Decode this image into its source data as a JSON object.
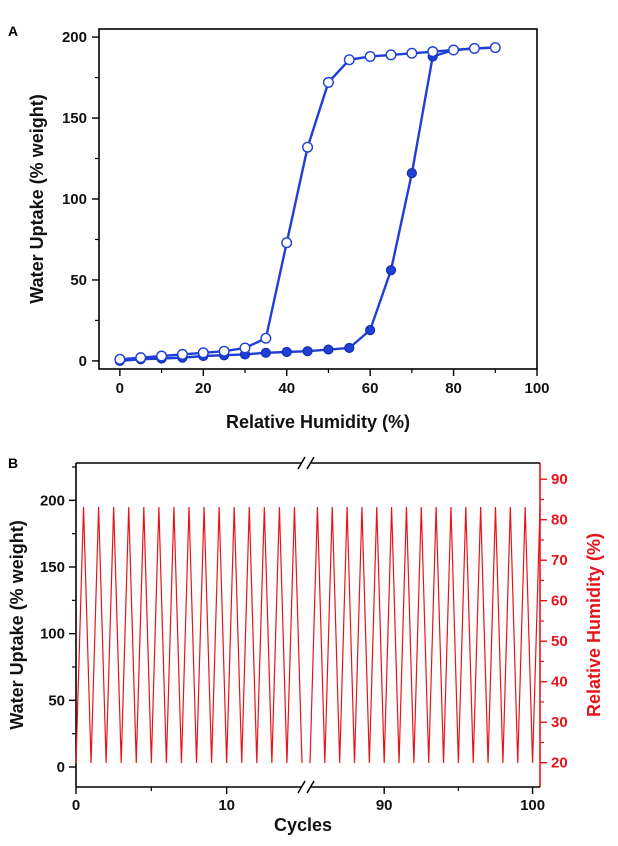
{
  "chart_data": [
    {
      "panel_label": "A",
      "type": "line",
      "xlabel": "Relative Humidity (%)",
      "ylabel": "Water Uptake (% weight)",
      "xlim": [
        -5,
        100
      ],
      "ylim": [
        -5,
        205
      ],
      "xticks": [
        0,
        20,
        40,
        60,
        80,
        100
      ],
      "yticks": [
        0,
        50,
        100,
        150,
        200
      ],
      "grid": false,
      "legend": "none",
      "color": "#1f3fd6",
      "series": [
        {
          "marker": "filled-circle",
          "x": [
            0,
            5,
            10,
            15,
            20,
            25,
            30,
            35,
            40,
            45,
            50,
            55,
            60,
            65,
            70,
            75,
            80,
            85,
            90
          ],
          "y": [
            0,
            1,
            1.5,
            2,
            3,
            3.5,
            4,
            5,
            5.5,
            6,
            7,
            8,
            19,
            56,
            116,
            188,
            192,
            193,
            193.5
          ]
        },
        {
          "marker": "open-circle",
          "x": [
            90,
            85,
            80,
            75,
            70,
            65,
            60,
            55,
            50,
            45,
            40,
            35,
            30,
            25,
            20,
            15,
            10,
            5,
            0
          ],
          "y": [
            193.5,
            193,
            192,
            191,
            190,
            189,
            188,
            186,
            172,
            132,
            73,
            14,
            8,
            6,
            5,
            4,
            3,
            2,
            1
          ]
        }
      ]
    },
    {
      "panel_label": "B",
      "type": "line",
      "xlabel": "Cycles",
      "ylabel": "Water Uptake (% weight)",
      "y2label": "Relative Humidity (%)",
      "ylim": [
        -15,
        228
      ],
      "yticks": [
        0,
        50,
        100,
        150,
        200
      ],
      "y2lim": [
        14,
        94
      ],
      "y2ticks": [
        20,
        30,
        40,
        50,
        60,
        70,
        80,
        90
      ],
      "xticks": [
        0,
        10,
        90,
        100
      ],
      "x_segments": [
        {
          "start": 0,
          "end": 15
        },
        {
          "start": 85,
          "end": 100.5
        }
      ],
      "grid": false,
      "legend": "none",
      "color": "#e8141b",
      "series": [
        {
          "name": "",
          "pattern": "triangle wave per cycle",
          "min": 3,
          "max": 195
        }
      ]
    }
  ]
}
